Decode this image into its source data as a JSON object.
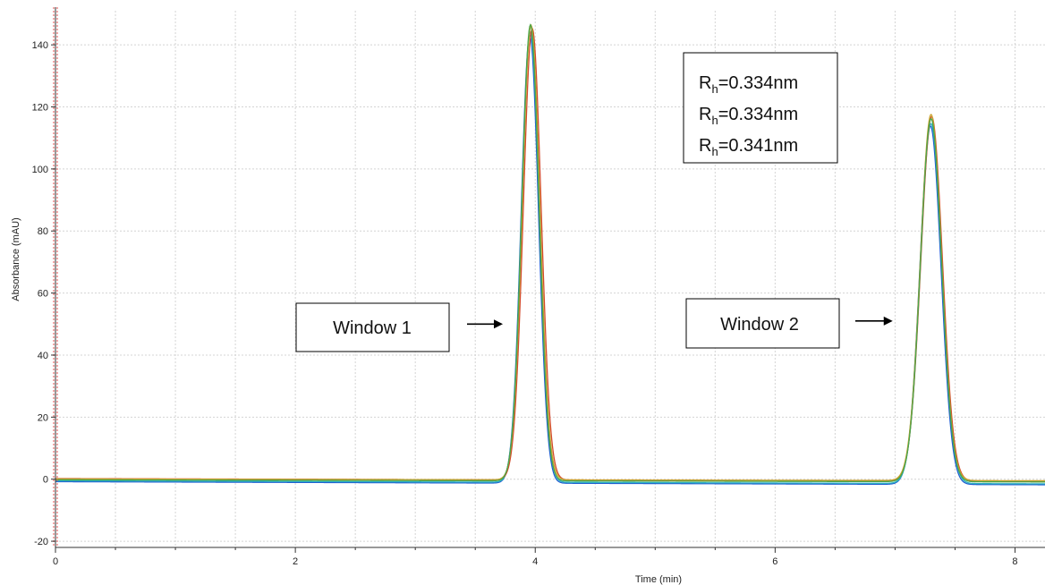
{
  "chart_data": {
    "type": "line",
    "title": "",
    "xlabel": "Time (min)",
    "ylabel": "Absorbance (mAU)",
    "xlim": [
      0,
      8.25
    ],
    "ylim": [
      -22,
      151
    ],
    "xticks": [
      0,
      2,
      4,
      6,
      8
    ],
    "yticks": [
      -20,
      0,
      20,
      40,
      60,
      80,
      100,
      120,
      140
    ],
    "grid": true,
    "series": [
      {
        "color": "#1f5fd0",
        "baseline_start": -0.8,
        "baseline_end": -1.8,
        "peaks": [
          {
            "center": 3.955,
            "height": 144.5,
            "width": 0.072
          },
          {
            "center": 7.295,
            "height": 115.5,
            "width": 0.088
          }
        ]
      },
      {
        "color": "#2bb0c0",
        "baseline_start": -0.5,
        "baseline_end": -1.5,
        "peaks": [
          {
            "center": 3.96,
            "height": 145.0,
            "width": 0.073
          },
          {
            "center": 7.3,
            "height": 116.0,
            "width": 0.089
          }
        ]
      },
      {
        "color": "#d24a2a",
        "baseline_start": 0.2,
        "baseline_end": -0.7,
        "peaks": [
          {
            "center": 3.975,
            "height": 145.5,
            "width": 0.074
          },
          {
            "center": 7.305,
            "height": 117.5,
            "width": 0.09
          }
        ]
      },
      {
        "color": "#c9a22c",
        "baseline_start": 0.1,
        "baseline_end": -0.5,
        "peaks": [
          {
            "center": 3.965,
            "height": 146.5,
            "width": 0.073
          },
          {
            "center": 7.3,
            "height": 118.0,
            "width": 0.089
          }
        ]
      },
      {
        "color": "#4aa64a",
        "baseline_start": -0.2,
        "baseline_end": -0.9,
        "peaks": [
          {
            "center": 3.96,
            "height": 147.0,
            "width": 0.072
          },
          {
            "center": 7.3,
            "height": 117.0,
            "width": 0.088
          }
        ]
      }
    ],
    "annotations": {
      "window1": {
        "label": "Window 1",
        "arrow_to": [
          3.73,
          50
        ]
      },
      "window2": {
        "label": "Window 2",
        "arrow_to": [
          6.98,
          51
        ]
      },
      "rh_box": {
        "lines": [
          {
            "symbol": "R",
            "subscript": "h",
            "value": "=0.334nm"
          },
          {
            "symbol": "R",
            "subscript": "h",
            "value": "=0.334nm"
          },
          {
            "symbol": "R",
            "subscript": "h",
            "value": "=0.341nm"
          }
        ]
      }
    },
    "colors": {
      "grid": "#d4d4d4",
      "axis": "#333333",
      "origin_marker": "#e05050"
    }
  }
}
